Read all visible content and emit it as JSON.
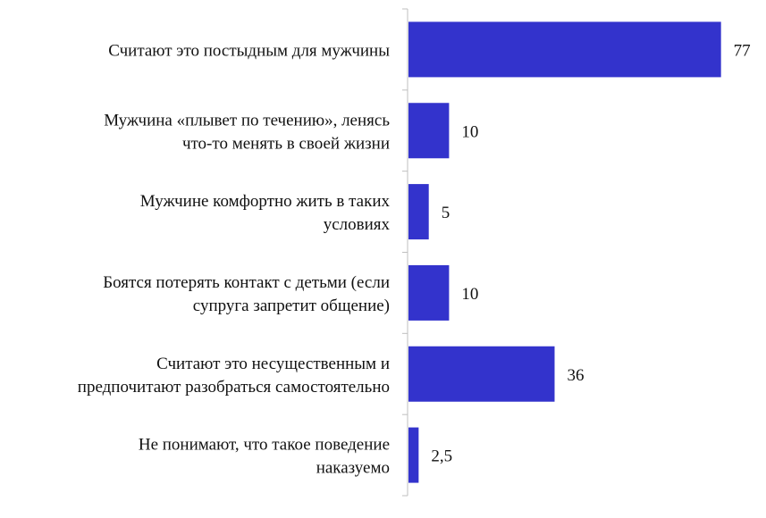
{
  "chart_data": {
    "type": "bar",
    "orientation": "horizontal",
    "categories": [
      [
        "Считают это постыдным для мужчины"
      ],
      [
        "Мужчина «плывет по течению», ленясь",
        "что-то менять в своей жизни"
      ],
      [
        "Мужчине комфортно жить в таких",
        "условиях"
      ],
      [
        "Боятся потерять контакт с детьми (если",
        "супруга запретит общение)"
      ],
      [
        "Считают это несущественным и",
        "предпочитают разобраться самостоятельно"
      ],
      [
        "Не понимают, что такое поведение",
        "наказуемо"
      ]
    ],
    "values": [
      77,
      10,
      5,
      10,
      36,
      2.5
    ],
    "value_labels": [
      "77",
      "10",
      "5",
      "10",
      "36",
      "2,5"
    ],
    "xlim": [
      0,
      85
    ],
    "bar_color": "#3333cc",
    "axis_color": "#bfbfbf",
    "grid": false,
    "title": "",
    "xlabel": "",
    "ylabel": ""
  }
}
